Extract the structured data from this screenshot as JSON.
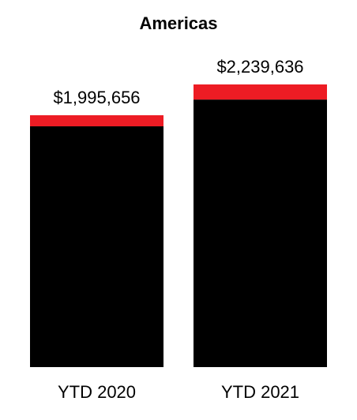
{
  "chart_data": {
    "type": "stacked_bar",
    "title": "Americas",
    "categories": [
      "YTD 2020",
      "YTD 2021"
    ],
    "series": [
      {
        "color": "#000000",
        "values": [
          1908000,
          2120000
        ]
      },
      {
        "color": "#ed1c24",
        "values": [
          88000,
          120000
        ]
      }
    ],
    "totals": [
      1995656,
      2239636
    ],
    "total_labels": [
      "$1,995,656",
      "$2,239,636"
    ]
  }
}
